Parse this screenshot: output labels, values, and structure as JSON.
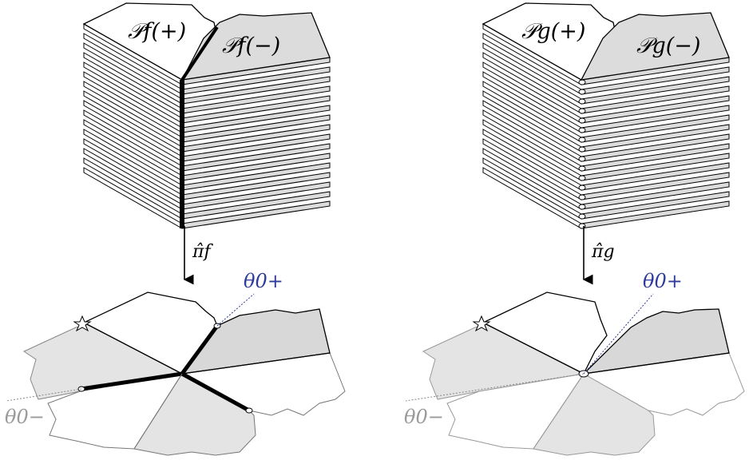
{
  "left_panel": {
    "stack_top_left_label": "𝒫f(+)",
    "stack_top_right_label": "𝒫f(−)",
    "map_label": "π̂f",
    "theta_plus": "θ0+",
    "theta_minus": "θ0−"
  },
  "right_panel": {
    "stack_top_left_label": "𝒫g(+)",
    "stack_top_right_label": "𝒫g(−)",
    "map_label": "π̂g",
    "theta_plus": "θ0+",
    "theta_minus": "θ0−"
  },
  "colors": {
    "sheet_white": "#ffffff",
    "sheet_gray": "#dcdcdc",
    "petal_gray": "#e4e4e4",
    "blue": "#2e3a9c",
    "gray_text": "#9a9a9a"
  }
}
